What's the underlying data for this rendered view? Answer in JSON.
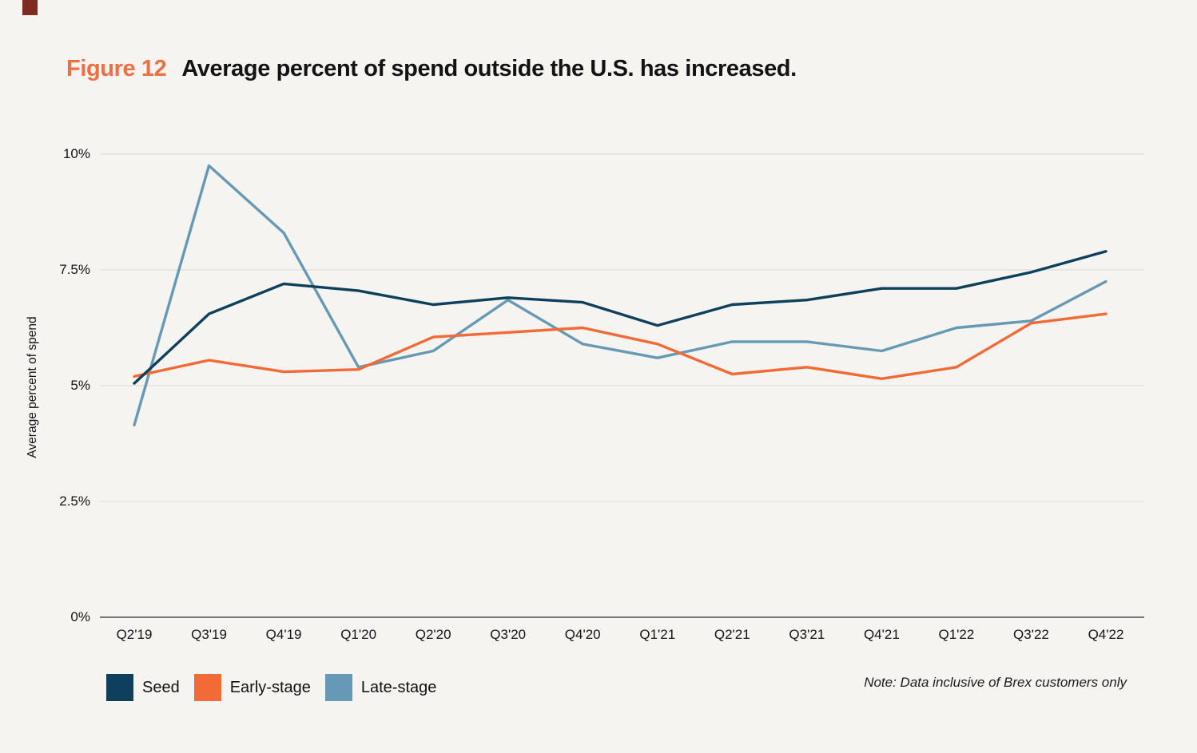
{
  "page": {
    "background": "#f5f4f1",
    "brand_mark_color": "#7e2b22"
  },
  "header": {
    "figure_label": "Figure 12",
    "title": "Average percent of spend outside the U.S. has increased."
  },
  "chart_data": {
    "type": "line",
    "title": "Average percent of spend outside the U.S. has increased.",
    "xlabel": "",
    "ylabel": "Average percent of spend",
    "ylim": [
      0,
      10
    ],
    "grid": true,
    "legend_position": "bottom-left",
    "categories": [
      "Q2'19",
      "Q3'19",
      "Q4'19",
      "Q1'20",
      "Q2'20",
      "Q3'20",
      "Q4'20",
      "Q1'21",
      "Q2'21",
      "Q3'21",
      "Q4'21",
      "Q1'22",
      "Q3'22",
      "Q4'22"
    ],
    "yticks": [
      {
        "value": 0,
        "label": "0%"
      },
      {
        "value": 2.5,
        "label": "2.5%"
      },
      {
        "value": 5,
        "label": "5%"
      },
      {
        "value": 7.5,
        "label": "7.5%"
      },
      {
        "value": 10,
        "label": "10%"
      }
    ],
    "series": [
      {
        "name": "Seed",
        "color": "#0e405c",
        "values": [
          5.05,
          6.55,
          7.2,
          7.05,
          6.75,
          6.9,
          6.8,
          6.3,
          6.75,
          6.85,
          7.1,
          7.1,
          7.45,
          7.9
        ]
      },
      {
        "name": "Early-stage",
        "color": "#f26a36",
        "values": [
          5.2,
          5.55,
          5.3,
          5.35,
          6.05,
          6.15,
          6.25,
          5.9,
          5.25,
          5.4,
          5.15,
          5.4,
          6.35,
          6.55
        ]
      },
      {
        "name": "Late-stage",
        "color": "#6699b3",
        "values": [
          4.15,
          9.75,
          8.3,
          5.4,
          5.75,
          6.85,
          5.9,
          5.6,
          5.95,
          5.95,
          5.75,
          6.25,
          6.4,
          7.25
        ]
      }
    ],
    "colors": {
      "gridline": "#d8d7d3",
      "zero_axis": "#4d4d4d"
    }
  },
  "legend": {
    "items": [
      {
        "label": "Seed",
        "color": "#0e405c"
      },
      {
        "label": "Early-stage",
        "color": "#f26a36"
      },
      {
        "label": "Late-stage",
        "color": "#6699b3"
      }
    ]
  },
  "note": "Note: Data inclusive of Brex customers only"
}
